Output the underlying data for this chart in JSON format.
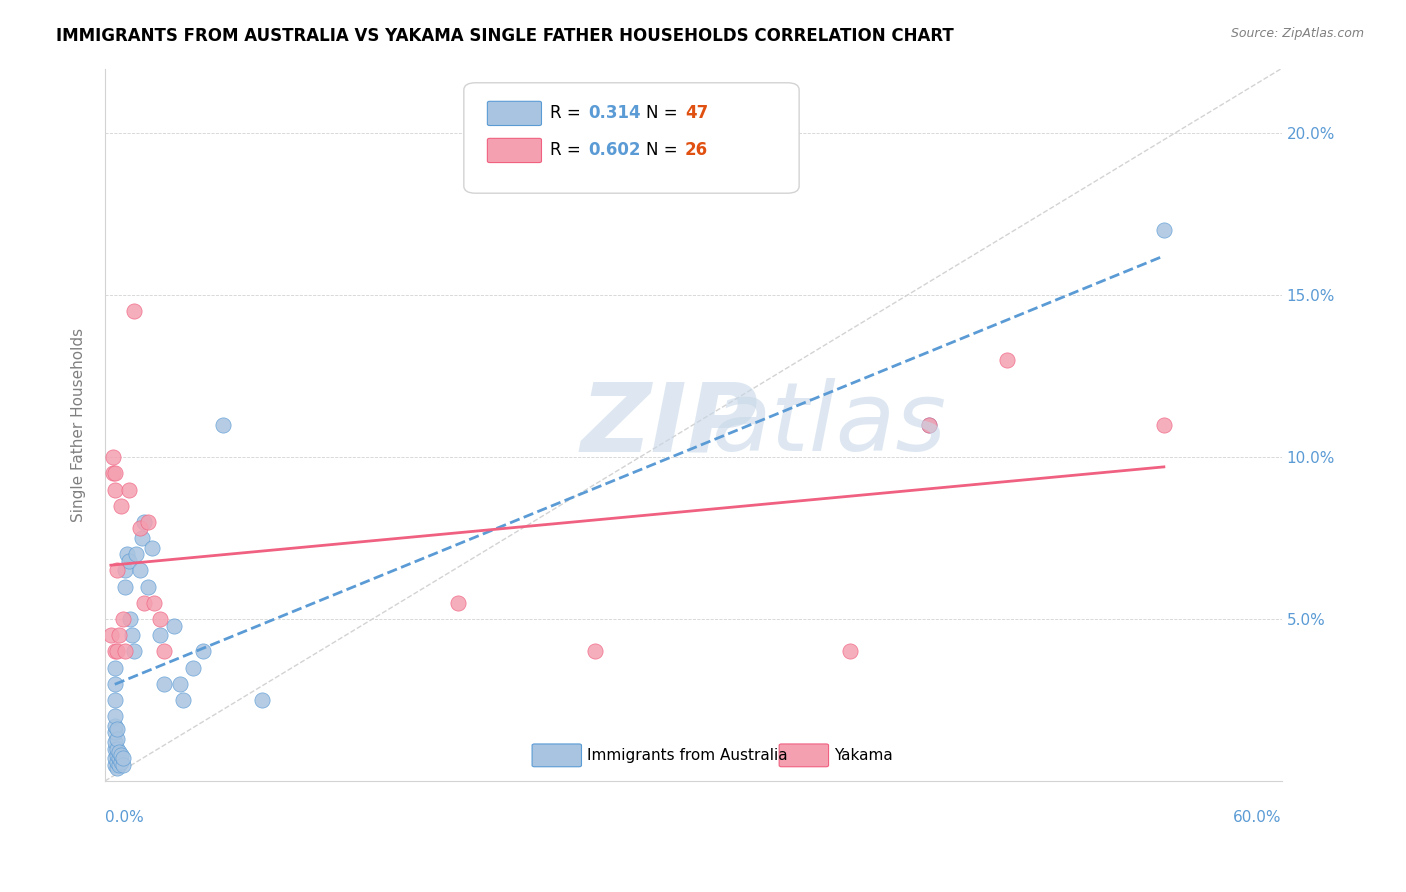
{
  "title": "IMMIGRANTS FROM AUSTRALIA VS YAKAMA SINGLE FATHER HOUSEHOLDS CORRELATION CHART",
  "source": "Source: ZipAtlas.com",
  "ylabel": "Single Father Households",
  "legend_label_1": "Immigrants from Australia",
  "legend_label_2": "Yakama",
  "R1": 0.314,
  "N1": 47,
  "R2": 0.602,
  "N2": 26,
  "blue_color": "#a8c4e0",
  "pink_color": "#f4a0b0",
  "blue_line_color": "#5b9bd5",
  "pink_line_color": "#f06080",
  "watermark_color": "#cddaе8",
  "ytick_labels": [
    "5.0%",
    "10.0%",
    "15.0%",
    "20.0%"
  ],
  "ytick_values": [
    0.05,
    0.1,
    0.15,
    0.2
  ],
  "xlim": [
    0,
    0.6
  ],
  "ylim": [
    0,
    0.22
  ],
  "blue_scatter_x": [
    0.005,
    0.005,
    0.005,
    0.005,
    0.005,
    0.005,
    0.005,
    0.005,
    0.005,
    0.005,
    0.006,
    0.006,
    0.006,
    0.006,
    0.006,
    0.006,
    0.007,
    0.007,
    0.007,
    0.008,
    0.008,
    0.009,
    0.009,
    0.01,
    0.01,
    0.011,
    0.012,
    0.013,
    0.014,
    0.015,
    0.016,
    0.018,
    0.019,
    0.02,
    0.022,
    0.024,
    0.028,
    0.03,
    0.035,
    0.038,
    0.04,
    0.045,
    0.05,
    0.06,
    0.08,
    0.42,
    0.54
  ],
  "blue_scatter_y": [
    0.005,
    0.007,
    0.01,
    0.012,
    0.015,
    0.017,
    0.02,
    0.025,
    0.03,
    0.035,
    0.004,
    0.006,
    0.008,
    0.01,
    0.013,
    0.016,
    0.005,
    0.007,
    0.009,
    0.006,
    0.008,
    0.005,
    0.007,
    0.06,
    0.065,
    0.07,
    0.068,
    0.05,
    0.045,
    0.04,
    0.07,
    0.065,
    0.075,
    0.08,
    0.06,
    0.072,
    0.045,
    0.03,
    0.048,
    0.03,
    0.025,
    0.035,
    0.04,
    0.11,
    0.025,
    0.11,
    0.17
  ],
  "pink_scatter_x": [
    0.003,
    0.004,
    0.004,
    0.005,
    0.005,
    0.005,
    0.006,
    0.006,
    0.007,
    0.008,
    0.009,
    0.01,
    0.012,
    0.015,
    0.018,
    0.02,
    0.022,
    0.025,
    0.028,
    0.03,
    0.18,
    0.25,
    0.38,
    0.42,
    0.46,
    0.54
  ],
  "pink_scatter_y": [
    0.045,
    0.095,
    0.1,
    0.09,
    0.095,
    0.04,
    0.04,
    0.065,
    0.045,
    0.085,
    0.05,
    0.04,
    0.09,
    0.145,
    0.078,
    0.055,
    0.08,
    0.055,
    0.05,
    0.04,
    0.055,
    0.04,
    0.04,
    0.11,
    0.13,
    0.11
  ]
}
